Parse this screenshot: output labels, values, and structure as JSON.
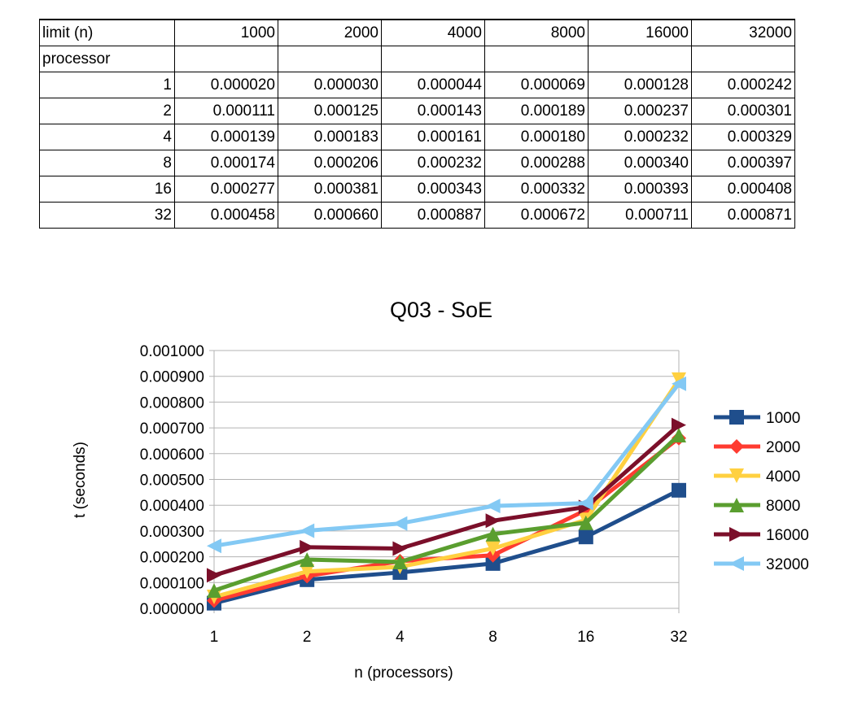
{
  "table": {
    "row_header_label": "limit (n)",
    "column_headers": [
      "1000",
      "2000",
      "4000",
      "8000",
      "16000",
      "32000"
    ],
    "subheader_label": "processor",
    "rows": [
      {
        "processor": "1",
        "values": [
          "0.000020",
          "0.000030",
          "0.000044",
          "0.000069",
          "0.000128",
          "0.000242"
        ]
      },
      {
        "processor": "2",
        "values": [
          "0.000111",
          "0.000125",
          "0.000143",
          "0.000189",
          "0.000237",
          "0.000301"
        ]
      },
      {
        "processor": "4",
        "values": [
          "0.000139",
          "0.000183",
          "0.000161",
          "0.000180",
          "0.000232",
          "0.000329"
        ]
      },
      {
        "processor": "8",
        "values": [
          "0.000174",
          "0.000206",
          "0.000232",
          "0.000288",
          "0.000340",
          "0.000397"
        ]
      },
      {
        "processor": "16",
        "values": [
          "0.000277",
          "0.000381",
          "0.000343",
          "0.000332",
          "0.000393",
          "0.000408"
        ]
      },
      {
        "processor": "32",
        "values": [
          "0.000458",
          "0.000660",
          "0.000887",
          "0.000672",
          "0.000711",
          "0.000871"
        ]
      }
    ]
  },
  "chart_data": {
    "type": "line",
    "title": "Q03 - SoE",
    "xlabel": "n (processors)",
    "ylabel": "t (seconds)",
    "categories": [
      "1",
      "2",
      "4",
      "8",
      "16",
      "32"
    ],
    "ylim": [
      0,
      0.001
    ],
    "yticks": [
      "0.000000",
      "0.000100",
      "0.000200",
      "0.000300",
      "0.000400",
      "0.000500",
      "0.000600",
      "0.000700",
      "0.000800",
      "0.000900",
      "0.001000"
    ],
    "grid": true,
    "legend_position": "right",
    "series": [
      {
        "name": "1000",
        "color": "#1f4e8c",
        "marker": "square",
        "values": [
          2e-05,
          0.000111,
          0.000139,
          0.000174,
          0.000277,
          0.000458
        ]
      },
      {
        "name": "2000",
        "color": "#ff3b30",
        "marker": "diamond",
        "values": [
          3e-05,
          0.000125,
          0.000183,
          0.000206,
          0.000381,
          0.00066
        ]
      },
      {
        "name": "4000",
        "color": "#ffd040",
        "marker": "triangle-down",
        "values": [
          4.4e-05,
          0.000143,
          0.000161,
          0.000232,
          0.000343,
          0.000887
        ]
      },
      {
        "name": "8000",
        "color": "#5a9e2f",
        "marker": "triangle-up",
        "values": [
          6.9e-05,
          0.000189,
          0.00018,
          0.000288,
          0.000332,
          0.000672
        ]
      },
      {
        "name": "16000",
        "color": "#7b0f2a",
        "marker": "triangle-right",
        "values": [
          0.000128,
          0.000237,
          0.000232,
          0.00034,
          0.000393,
          0.000711
        ]
      },
      {
        "name": "32000",
        "color": "#83c9f4",
        "marker": "triangle-left",
        "values": [
          0.000242,
          0.000301,
          0.000329,
          0.000397,
          0.000408,
          0.000871
        ]
      }
    ]
  }
}
